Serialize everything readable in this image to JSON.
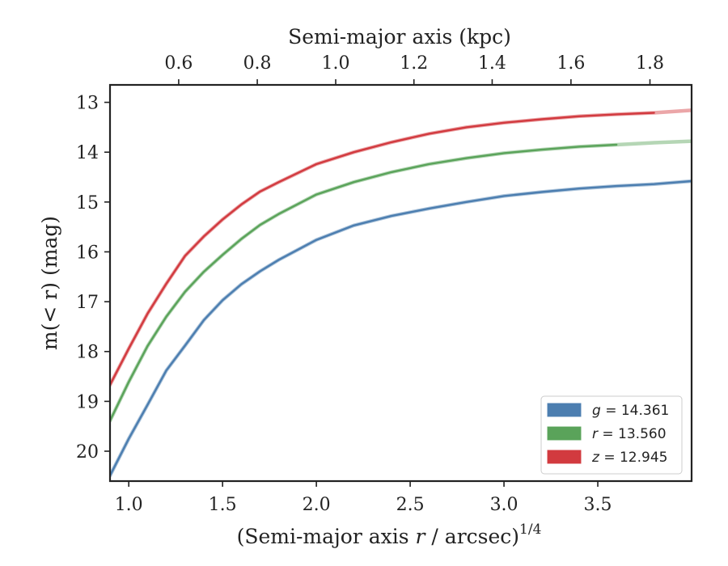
{
  "chart_data": {
    "type": "line",
    "xlabel": "(Semi-major axis r / arcsec)",
    "xlabel_var": "r",
    "xlabel_exp": "1/4",
    "ylabel": "m(< r) (mag)",
    "top_xlabel": "Semi-major axis (kpc)",
    "xlim": [
      0.9,
      4.0
    ],
    "ylim": [
      20.6,
      12.65
    ],
    "y_inverted": true,
    "x_ticks": [
      1.0,
      1.5,
      2.0,
      2.5,
      3.0,
      3.5
    ],
    "x_tick_labels": [
      "1.0",
      "1.5",
      "2.0",
      "2.5",
      "3.0",
      "3.5"
    ],
    "y_ticks": [
      13,
      14,
      15,
      16,
      17,
      18,
      19,
      20
    ],
    "y_tick_labels": [
      "13",
      "14",
      "15",
      "16",
      "17",
      "18",
      "19",
      "20"
    ],
    "top_ticks_kpc": [
      0.6,
      0.8,
      1.0,
      1.2,
      1.4,
      1.6,
      1.8
    ],
    "top_tick_labels": [
      "0.6",
      "0.8",
      "1.0",
      "1.2",
      "1.4",
      "1.6",
      "1.8"
    ],
    "top_axis_x_at": [
      1.266,
      1.685,
      2.103,
      2.52,
      2.937,
      3.357,
      3.778
    ],
    "grid": false,
    "legend_position": "lower-right",
    "series": [
      {
        "name": "g = 14.361",
        "band": "g",
        "value": "14.361",
        "color": "#4c7eb0",
        "x": [
          0.9,
          1.0,
          1.1,
          1.2,
          1.3,
          1.4,
          1.5,
          1.6,
          1.7,
          1.8,
          2.0,
          2.2,
          2.4,
          2.6,
          2.8,
          3.0,
          3.2,
          3.4,
          3.6,
          3.8,
          4.0
        ],
        "y": [
          20.49,
          19.75,
          19.07,
          18.38,
          17.88,
          17.37,
          16.97,
          16.65,
          16.39,
          16.16,
          15.76,
          15.47,
          15.28,
          15.13,
          15.0,
          14.88,
          14.8,
          14.73,
          14.68,
          14.64,
          14.58
        ]
      },
      {
        "name": "r = 13.560",
        "band": "r",
        "value": "13.560",
        "color": "#5aa35a",
        "x": [
          0.9,
          1.0,
          1.1,
          1.2,
          1.3,
          1.4,
          1.5,
          1.6,
          1.7,
          1.8,
          2.0,
          2.2,
          2.4,
          2.6,
          2.8,
          3.0,
          3.2,
          3.4,
          3.6,
          3.8,
          4.0
        ],
        "y": [
          19.39,
          18.61,
          17.89,
          17.3,
          16.8,
          16.4,
          16.06,
          15.74,
          15.46,
          15.24,
          14.85,
          14.6,
          14.4,
          14.24,
          14.12,
          14.02,
          13.95,
          13.89,
          13.85,
          13.81,
          13.78
        ]
      },
      {
        "name": "z = 12.945",
        "band": "z",
        "value": "12.945",
        "color": "#d23a3f",
        "x": [
          0.9,
          1.0,
          1.1,
          1.2,
          1.3,
          1.4,
          1.5,
          1.6,
          1.7,
          1.8,
          2.0,
          2.2,
          2.4,
          2.6,
          2.8,
          3.0,
          3.2,
          3.4,
          3.6,
          3.8,
          4.0
        ],
        "y": [
          18.67,
          17.94,
          17.24,
          16.64,
          16.08,
          15.69,
          15.35,
          15.05,
          14.79,
          14.6,
          14.24,
          14.0,
          13.8,
          13.63,
          13.5,
          13.41,
          13.34,
          13.28,
          13.24,
          13.21,
          13.16
        ]
      }
    ]
  }
}
